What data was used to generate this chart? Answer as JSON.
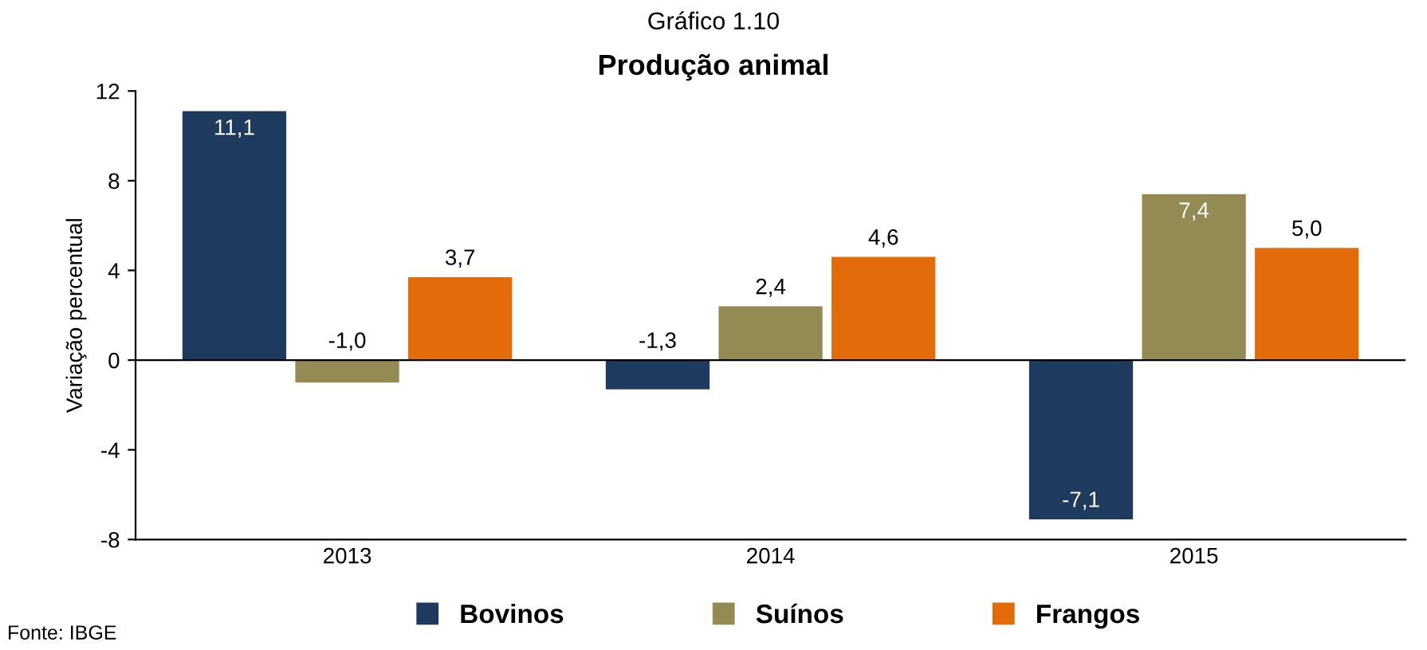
{
  "chart_data": {
    "type": "bar",
    "title": "Gráfico 1.10",
    "subtitle": "Produção animal",
    "ylabel": "Variação percentual",
    "categories": [
      "2013",
      "2014",
      "2015"
    ],
    "series": [
      {
        "name": "Bovinos",
        "color": "#1f3a5f",
        "values": [
          11.1,
          -1.3,
          -7.1
        ],
        "value_labels": [
          "11,1",
          "-1,3",
          "-7,1"
        ]
      },
      {
        "name": "Suínos",
        "color": "#948a54",
        "values": [
          -1.0,
          2.4,
          7.4
        ],
        "value_labels": [
          "-1,0",
          "2,4",
          "7,4"
        ]
      },
      {
        "name": "Frangos",
        "color": "#e36c0a",
        "values": [
          3.7,
          4.6,
          5.0
        ],
        "value_labels": [
          "3,7",
          "4,6",
          "5,0"
        ]
      }
    ],
    "ylim": [
      -8,
      12
    ],
    "yticks": [
      -8,
      -4,
      0,
      4,
      8,
      12
    ],
    "ref_lines": [
      {
        "axis": "y",
        "value": 0,
        "color": "#000000"
      }
    ],
    "legend": "bottom",
    "marker": "square",
    "annotations": [
      "Fonte: IBGE"
    ]
  }
}
